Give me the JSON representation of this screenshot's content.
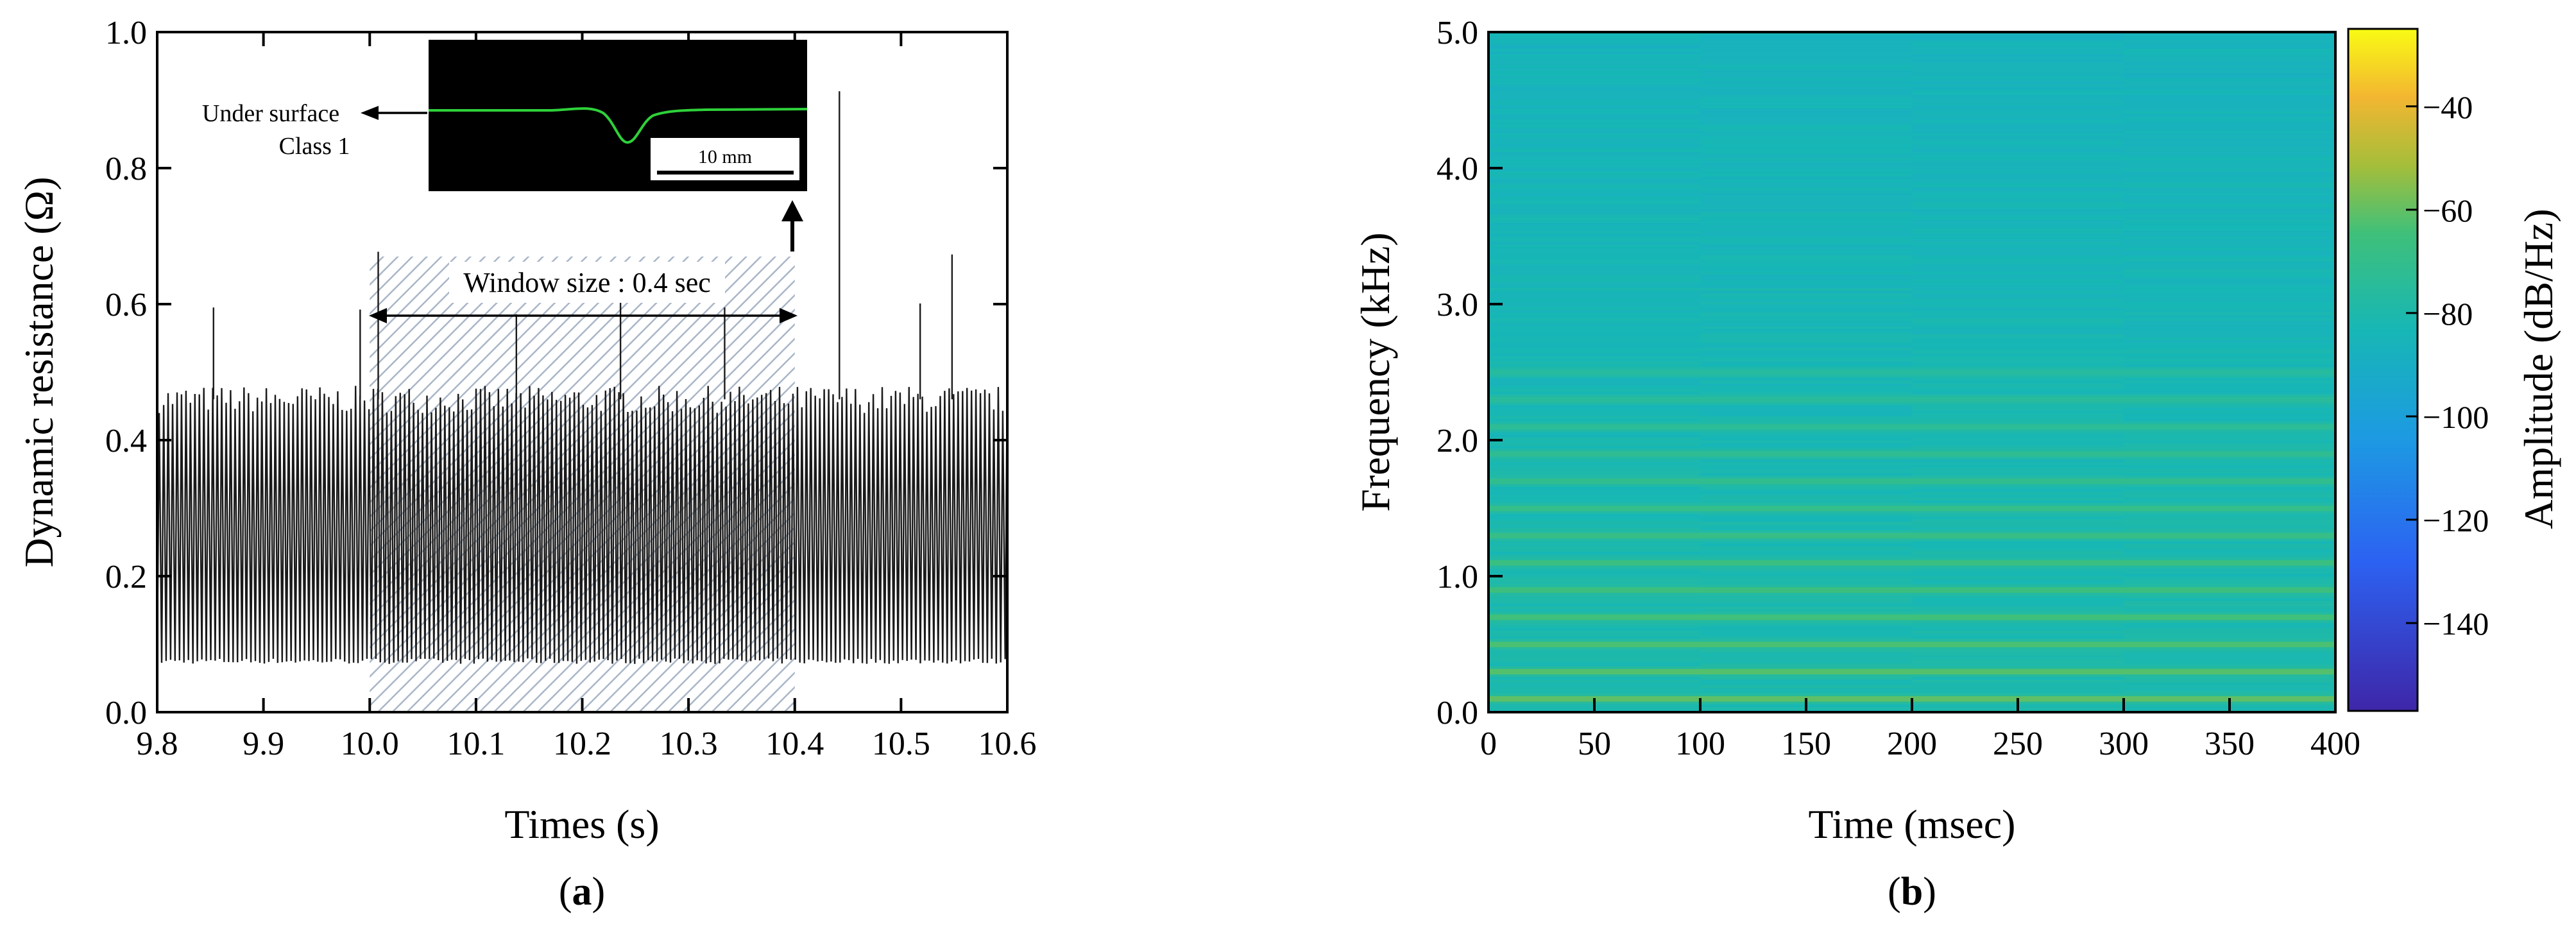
{
  "chart_data": [
    {
      "panel": "a",
      "type": "line",
      "xlabel": "Times (s)",
      "ylabel": "Dynamic resistance (Ω)",
      "xlim": [
        9.8,
        10.6
      ],
      "ylim": [
        0.0,
        1.0
      ],
      "xticks": [
        "9.8",
        "9.9",
        "10.0",
        "10.1",
        "10.2",
        "10.3",
        "10.4",
        "10.5",
        "10.6"
      ],
      "yticks": [
        "0.0",
        "0.2",
        "0.4",
        "0.6",
        "0.8",
        "1.0"
      ],
      "signal": {
        "description_free": true,
        "period_s": 0.0042,
        "baseline": 0.075,
        "typical_peak": 0.46,
        "spikes": [
          {
            "x": 9.853,
            "y": 0.595
          },
          {
            "x": 9.991,
            "y": 0.592
          },
          {
            "x": 10.008,
            "y": 0.677
          },
          {
            "x": 10.138,
            "y": 0.585
          },
          {
            "x": 10.236,
            "y": 0.612
          },
          {
            "x": 10.334,
            "y": 0.595
          },
          {
            "x": 10.442,
            "y": 0.913
          },
          {
            "x": 10.518,
            "y": 0.601
          },
          {
            "x": 10.548,
            "y": 0.673
          }
        ]
      },
      "window": {
        "x_start": 10.0,
        "x_end": 10.4,
        "y_start": 0.0,
        "y_end": 0.67,
        "label": "Window size : 0.4 sec"
      },
      "inset": {
        "label_line1": "Under surface",
        "label_line2": "Class 1",
        "scalebar": "10 mm"
      },
      "panel_label": "a"
    },
    {
      "panel": "b",
      "type": "heatmap",
      "xlabel": "Time (msec)",
      "ylabel": "Frequency (kHz)",
      "xlim": [
        0,
        400
      ],
      "ylim": [
        0.0,
        5.0
      ],
      "xticks": [
        "0",
        "50",
        "100",
        "150",
        "200",
        "250",
        "300",
        "350",
        "400"
      ],
      "yticks": [
        "0.0",
        "1.0",
        "2.0",
        "3.0",
        "4.0",
        "5.0"
      ],
      "colorbar": {
        "label": "Amplitude (dB/Hz)",
        "range": [
          -157,
          -25
        ],
        "ticks": [
          "−40",
          "−60",
          "−80",
          "−100",
          "−120",
          "−140"
        ],
        "tick_values": [
          -40,
          -60,
          -80,
          -100,
          -120,
          -140
        ]
      },
      "segments_ms": [
        0,
        100,
        200,
        300,
        400
      ],
      "harmonics_khz": [
        0.1,
        0.3,
        0.5,
        0.7,
        0.9,
        1.1,
        1.3,
        1.5,
        1.7,
        1.9,
        2.1,
        2.3,
        2.5
      ],
      "panel_label": "b"
    }
  ],
  "colors": {
    "axis": "#000000",
    "signal": "#1a1a1a",
    "window_hatch": "#9aa9bd",
    "inset_background": "#000000",
    "inset_trace": "#2ed13a",
    "heatmap_base": "#21a584"
  }
}
